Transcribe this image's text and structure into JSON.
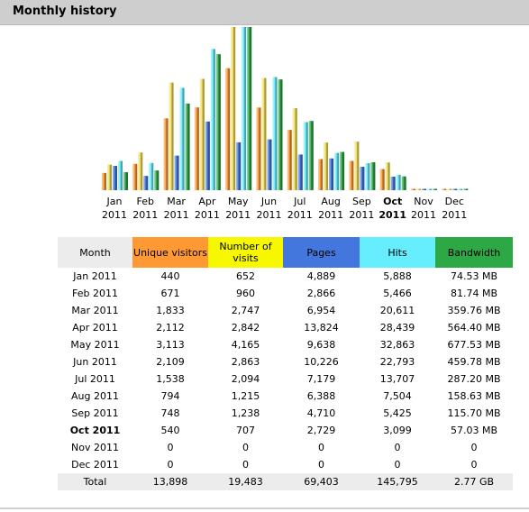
{
  "header": {
    "title": "Monthly history"
  },
  "colors": {
    "unique_visitors": "#ff9933",
    "visits": "#f2e05a",
    "pages": "#4477dd",
    "hits": "#66eeff",
    "bandwidth": "#2ea745"
  },
  "chart_data": {
    "type": "bar",
    "categories": [
      "Jan 2011",
      "Feb 2011",
      "Mar 2011",
      "Apr 2011",
      "May 2011",
      "Jun 2011",
      "Jul 2011",
      "Aug 2011",
      "Sep 2011",
      "Oct 2011",
      "Nov 2011",
      "Dec 2011"
    ],
    "series": [
      {
        "name": "Unique visitors",
        "values": [
          440,
          671,
          1833,
          2112,
          3113,
          2109,
          1538,
          794,
          748,
          540,
          0,
          0
        ]
      },
      {
        "name": "Number of visits",
        "values": [
          652,
          960,
          2747,
          2842,
          4165,
          2863,
          2094,
          1215,
          1238,
          707,
          0,
          0
        ]
      },
      {
        "name": "Pages",
        "values": [
          4889,
          2866,
          6954,
          13824,
          9638,
          10226,
          7179,
          6388,
          4710,
          2729,
          0,
          0
        ]
      },
      {
        "name": "Hits",
        "values": [
          5888,
          5466,
          20611,
          28439,
          32863,
          22793,
          13707,
          7504,
          5425,
          3099,
          0,
          0
        ]
      },
      {
        "name": "Bandwidth",
        "values": [
          74.53,
          81.74,
          359.76,
          564.4,
          677.53,
          459.78,
          287.2,
          158.63,
          115.7,
          57.03,
          0,
          0
        ]
      }
    ]
  },
  "months": [
    {
      "m": "Jan",
      "y": "2011"
    },
    {
      "m": "Feb",
      "y": "2011"
    },
    {
      "m": "Mar",
      "y": "2011"
    },
    {
      "m": "Apr",
      "y": "2011"
    },
    {
      "m": "May",
      "y": "2011"
    },
    {
      "m": "Jun",
      "y": "2011"
    },
    {
      "m": "Jul",
      "y": "2011"
    },
    {
      "m": "Aug",
      "y": "2011"
    },
    {
      "m": "Sep",
      "y": "2011"
    },
    {
      "m": "Oct",
      "y": "2011"
    },
    {
      "m": "Nov",
      "y": "2011"
    },
    {
      "m": "Dec",
      "y": "2011"
    }
  ],
  "table": {
    "headers": {
      "month": "Month",
      "unique_visitors": "Unique visitors",
      "visits": "Number of visits",
      "pages": "Pages",
      "hits": "Hits",
      "bandwidth": "Bandwidth"
    },
    "rows": [
      [
        "Jan 2011",
        "440",
        "652",
        "4,889",
        "5,888",
        "74.53 MB"
      ],
      [
        "Feb 2011",
        "671",
        "960",
        "2,866",
        "5,466",
        "81.74 MB"
      ],
      [
        "Mar 2011",
        "1,833",
        "2,747",
        "6,954",
        "20,611",
        "359.76 MB"
      ],
      [
        "Apr 2011",
        "2,112",
        "2,842",
        "13,824",
        "28,439",
        "564.40 MB"
      ],
      [
        "May 2011",
        "3,113",
        "4,165",
        "9,638",
        "32,863",
        "677.53 MB"
      ],
      [
        "Jun 2011",
        "2,109",
        "2,863",
        "10,226",
        "22,793",
        "459.78 MB"
      ],
      [
        "Jul 2011",
        "1,538",
        "2,094",
        "7,179",
        "13,707",
        "287.20 MB"
      ],
      [
        "Aug 2011",
        "794",
        "1,215",
        "6,388",
        "7,504",
        "158.63 MB"
      ],
      [
        "Sep 2011",
        "748",
        "1,238",
        "4,710",
        "5,425",
        "115.70 MB"
      ],
      [
        "Oct 2011",
        "540",
        "707",
        "2,729",
        "3,099",
        "57.03 MB"
      ],
      [
        "Nov 2011",
        "0",
        "0",
        "0",
        "0",
        "0"
      ],
      [
        "Dec 2011",
        "0",
        "0",
        "0",
        "0",
        "0"
      ]
    ],
    "total": [
      "Total",
      "13,898",
      "19,483",
      "69,403",
      "145,795",
      "2.77 GB"
    ]
  }
}
